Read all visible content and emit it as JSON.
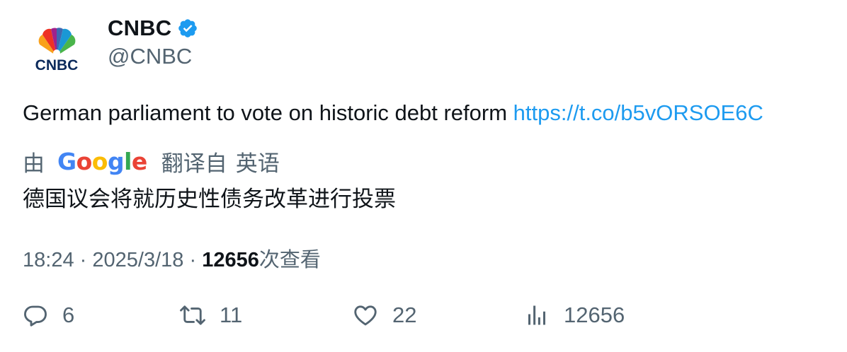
{
  "author": {
    "logo_text": "CNBC",
    "display_name": "CNBC",
    "handle": "@CNBC",
    "verified_icon": "verified-badge-icon"
  },
  "tweet": {
    "text": "German parliament to vote on historic debt reform ",
    "link_text": "https://t.co/b5vORSOE6C"
  },
  "translation": {
    "by_label": "由",
    "google_logo": [
      "G",
      "o",
      "o",
      "g",
      "l",
      "e"
    ],
    "translated_from_label": "翻译自",
    "language": "英语",
    "text": "德国议会将就历史性债务改革进行投票"
  },
  "meta": {
    "time": "18:24",
    "separator": "·",
    "date": "2025/3/18",
    "views_count": "12656",
    "views_label": "次查看"
  },
  "actions": {
    "replies": "6",
    "retweets": "11",
    "likes": "22",
    "views": "12656"
  },
  "colors": {
    "link": "#1d9bf0",
    "verified": "#1d9bf0",
    "secondary_text": "#536471",
    "primary_text": "#0f1419",
    "google": [
      "#4285F4",
      "#EA4335",
      "#FBBC05",
      "#4285F4",
      "#34A853",
      "#EA4335"
    ]
  }
}
